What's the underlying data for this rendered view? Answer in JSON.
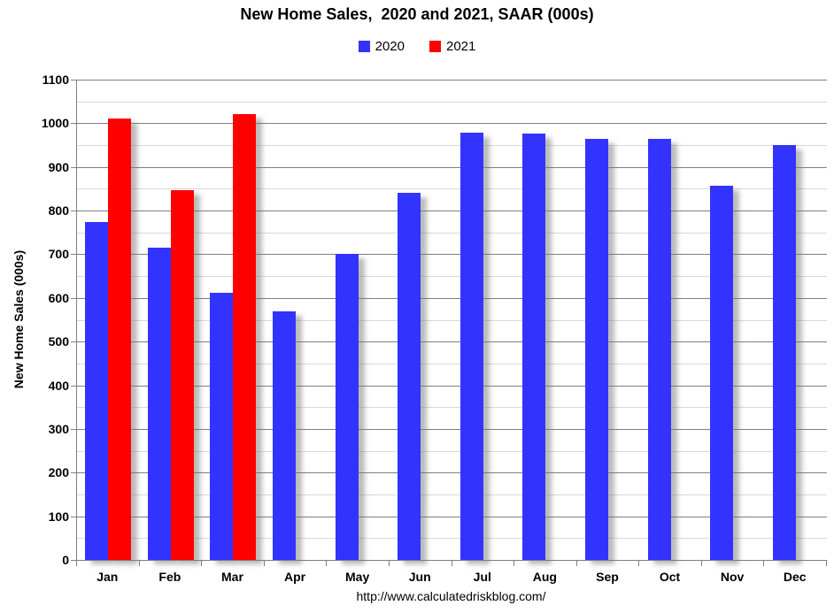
{
  "chart": {
    "footer_url": "http://www.calculatedriskblog.com/"
  },
  "chart_data": {
    "type": "bar",
    "title": "New Home Sales,  2020 and 2021, SAAR (000s)",
    "categories": [
      "Jan",
      "Feb",
      "Mar",
      "Apr",
      "May",
      "Jun",
      "Jul",
      "Aug",
      "Sep",
      "Oct",
      "Nov",
      "Dec"
    ],
    "series": [
      {
        "name": "2020",
        "color": "#3333ff",
        "values": [
          774,
          716,
          612,
          570,
          700,
          840,
          978,
          976,
          964,
          965,
          857,
          950
        ]
      },
      {
        "name": "2021",
        "color": "#ff0000",
        "values": [
          1010,
          846,
          1021,
          null,
          null,
          null,
          null,
          null,
          null,
          null,
          null,
          null
        ]
      }
    ],
    "xlabel": "",
    "ylabel": "New Home Sales (000s)",
    "ylim": [
      0,
      1100
    ],
    "ytick_interval": 100,
    "minor_tick_interval": 50,
    "grid": true,
    "legend_position": "top",
    "colors": {
      "major_gridline": "#7f7f7f",
      "minor_gridline": "#d9d9d9",
      "axis_line": "#7f7f7f",
      "text": "#000000",
      "background": "#ffffff"
    }
  }
}
